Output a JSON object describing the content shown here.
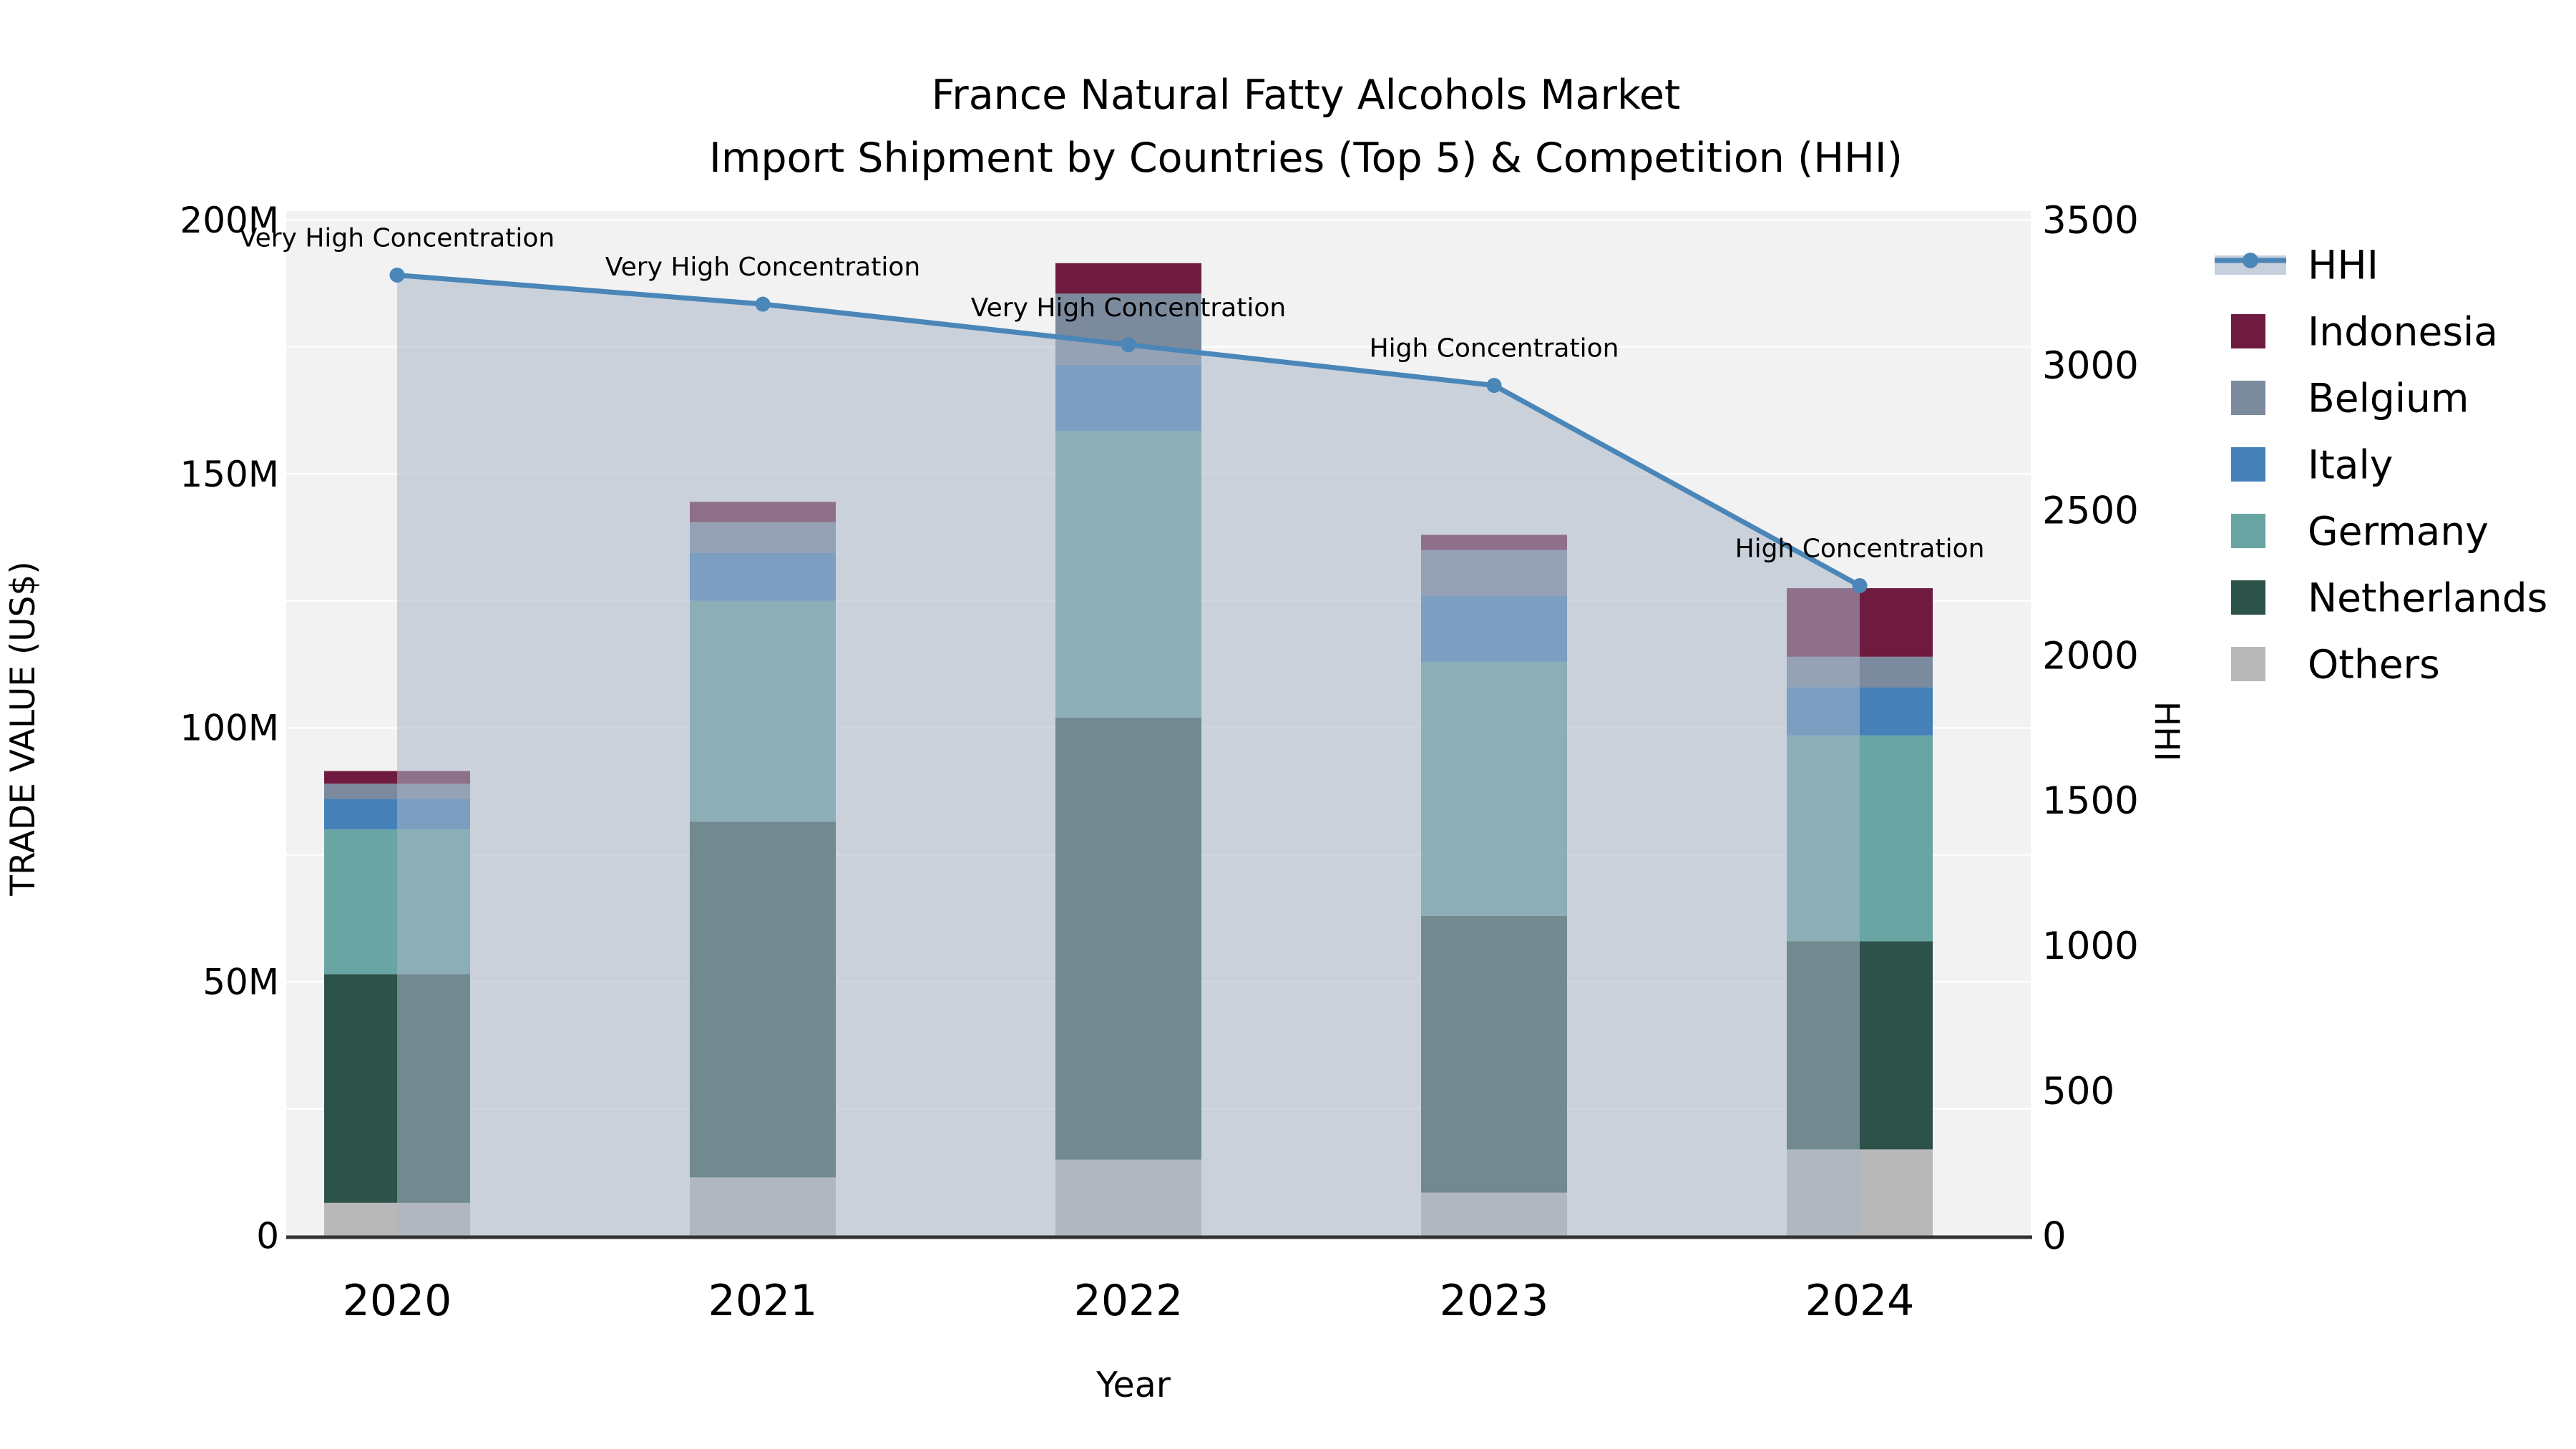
{
  "title": {
    "line1": "France Natural Fatty Alcohols Market",
    "line2": "Import Shipment by Countries (Top 5) & Competition (HHI)"
  },
  "chart_data": {
    "type": "combo: stacked bar (left axis) + line with area fill (right axis)",
    "categories": [
      "2020",
      "2021",
      "2022",
      "2023",
      "2024"
    ],
    "values_unit": "million US$",
    "series": [
      {
        "name": "Others",
        "color": "#b8b8b8",
        "values": [
          6.5,
          11.5,
          15,
          8.5,
          17
        ]
      },
      {
        "name": "Netherlands",
        "color": "#2d5249",
        "values": [
          45,
          70,
          87,
          54.5,
          41
        ]
      },
      {
        "name": "Germany",
        "color": "#68a5a3",
        "values": [
          28.5,
          43.5,
          56.5,
          50,
          40.5
        ]
      },
      {
        "name": "Italy",
        "color": "#4581b8",
        "values": [
          6,
          9.5,
          13,
          13,
          9.5
        ]
      },
      {
        "name": "Belgium",
        "color": "#7c8a9d",
        "values": [
          3,
          6,
          14,
          9,
          6
        ]
      },
      {
        "name": "Indonesia",
        "color": "#6e1b3f",
        "values": [
          2.5,
          4,
          6,
          3,
          13.5
        ]
      }
    ],
    "bar_totals": [
      91.5,
      144.5,
      191.5,
      138,
      127.5
    ],
    "line_series": {
      "name": "HHI",
      "color": "#4a86b8",
      "area_fill_color": "#a9b7c9",
      "values": [
        3310,
        3210,
        3070,
        2930,
        2240
      ]
    },
    "annotations": [
      "Very High Concentration",
      "Very High Concentration",
      "Very High Concentration",
      "High Concentration",
      "High Concentration"
    ],
    "xlabel": "Year",
    "ylabel_left": "TRADE VALUE (US$)",
    "ylabel_right": "HHI",
    "left_ticks": [
      {
        "label": "0",
        "value": 0
      },
      {
        "label": "50M",
        "value": 50
      },
      {
        "label": "100M",
        "value": 100
      },
      {
        "label": "150M",
        "value": 150
      },
      {
        "label": "200M",
        "value": 200
      }
    ],
    "right_ticks": [
      {
        "label": "0",
        "value": 0
      },
      {
        "label": "500",
        "value": 500
      },
      {
        "label": "1000",
        "value": 1000
      },
      {
        "label": "1500",
        "value": 1500
      },
      {
        "label": "2000",
        "value": 2000
      },
      {
        "label": "2500",
        "value": 2500
      },
      {
        "label": "3000",
        "value": 3000
      },
      {
        "label": "3500",
        "value": 3500
      }
    ],
    "ylim_left": [
      0,
      200
    ],
    "ylim_right": [
      0,
      3500
    ],
    "grid": "on",
    "legend_position": "right",
    "legend": [
      {
        "label": "HHI",
        "type": "line",
        "color": "#4a86b8",
        "band_color": "#c6cfdc"
      },
      {
        "label": "Indonesia",
        "type": "swatch",
        "color": "#6e1b3f"
      },
      {
        "label": "Belgium",
        "type": "swatch",
        "color": "#7c8a9d"
      },
      {
        "label": "Italy",
        "type": "swatch",
        "color": "#4581b8"
      },
      {
        "label": "Germany",
        "type": "swatch",
        "color": "#68a5a3"
      },
      {
        "label": "Netherlands",
        "type": "swatch",
        "color": "#2d5249"
      },
      {
        "label": "Others",
        "type": "swatch",
        "color": "#b8b8b8"
      }
    ],
    "colors": {
      "plot_background": "#f2f2f2",
      "gridline": "#ffffff",
      "axis_spine": "#333333",
      "annotation_text": "#111111"
    }
  }
}
